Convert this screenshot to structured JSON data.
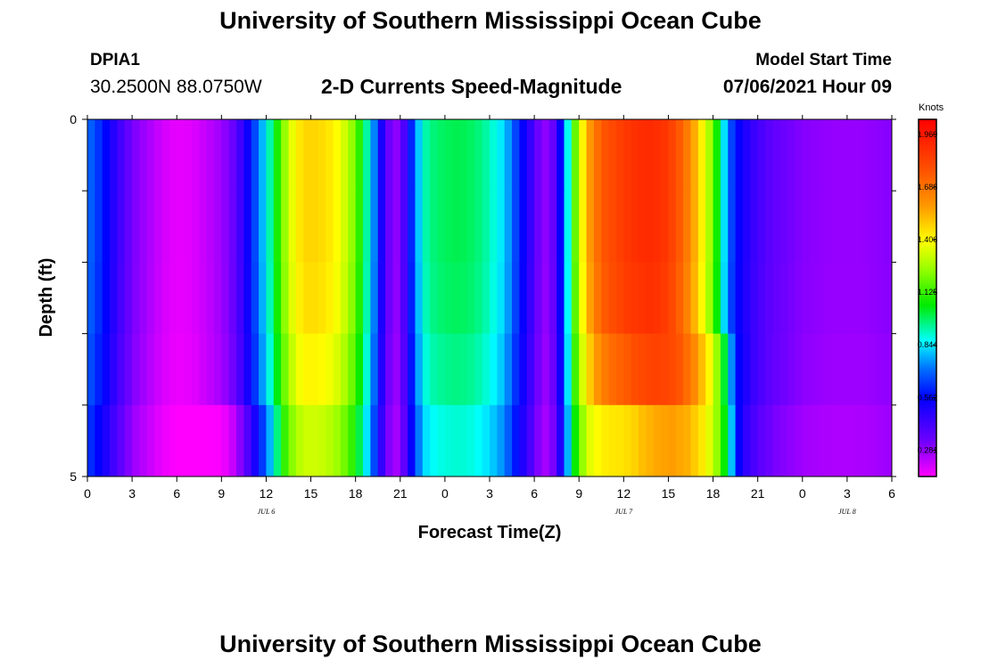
{
  "header": {
    "title": "University of Southern Mississippi Ocean Cube",
    "station_id": "DPIA1",
    "coordinates": "30.2500N  88.0750W",
    "plot_title": "2-D Currents Speed-Magnitude",
    "model_start_label": "Model Start Time",
    "model_start_value": "07/06/2021 Hour 09"
  },
  "footer": {
    "title": "University of Southern Mississippi Ocean Cube"
  },
  "colors": {
    "background": "#ffffff",
    "axis": "#000000"
  },
  "chart_data": {
    "type": "heatmap",
    "title": "2-D Currents Speed-Magnitude",
    "xlabel": "Forecast Time(Z)",
    "ylabel": "Depth (ft)",
    "x_unit": "hours since Jul 6 00Z",
    "xlim": [
      0,
      54
    ],
    "ylim": [
      0,
      5
    ],
    "y_ticks": [
      "0",
      "5"
    ],
    "x_tick_hours": [
      0,
      3,
      6,
      9,
      12,
      15,
      18,
      21,
      24,
      27,
      30,
      33,
      36,
      39,
      42,
      45,
      48,
      51,
      54
    ],
    "x_tick_labels": [
      "0",
      "3",
      "6",
      "9",
      "12",
      "15",
      "18",
      "21",
      "0",
      "3",
      "6",
      "9",
      "12",
      "15",
      "18",
      "21",
      "0",
      "3",
      "6"
    ],
    "date_labels": [
      {
        "hour": 12,
        "text": "JUL 6"
      },
      {
        "hour": 36,
        "text": "JUL 7"
      },
      {
        "hour": 51,
        "text": "JUL 8"
      }
    ],
    "colorbar": {
      "unit": "Knots",
      "min": 0.14,
      "max": 2.05,
      "ticks": [
        "0.281",
        "0.562",
        "0.844",
        "1.125",
        "1.406",
        "1.688",
        "1.969"
      ]
    },
    "depth_layers": [
      0,
      1,
      2,
      3,
      4,
      5
    ],
    "profile_x": [
      0,
      1,
      2,
      3,
      4,
      5,
      6,
      7,
      8,
      9,
      9.75,
      10.5,
      11,
      11.5,
      12,
      12.5,
      13,
      13.5,
      14,
      14.5,
      15,
      16,
      17,
      18,
      18.5,
      19,
      19.5,
      20,
      20.5,
      21,
      21.5,
      22,
      22.5,
      23,
      24,
      25,
      26,
      27,
      28,
      29,
      30,
      30.5,
      31,
      31.5,
      32,
      32.5,
      33,
      33.5,
      34,
      34.5,
      35,
      35.5,
      36,
      37,
      38,
      39,
      40,
      41,
      42,
      42.5,
      43,
      43.5,
      44,
      44.5,
      45,
      46,
      48,
      50,
      52,
      54
    ],
    "profile_top": [
      0.72,
      0.6,
      0.45,
      0.32,
      0.26,
      0.2,
      0.17,
      0.18,
      0.22,
      0.27,
      0.34,
      0.47,
      0.6,
      0.72,
      0.86,
      1.0,
      1.18,
      1.32,
      1.42,
      1.47,
      1.48,
      1.46,
      1.38,
      1.2,
      1.02,
      0.85,
      0.62,
      0.4,
      0.28,
      0.3,
      0.5,
      0.72,
      0.9,
      0.96,
      0.99,
      1.0,
      0.98,
      0.92,
      0.82,
      0.6,
      0.4,
      0.28,
      0.3,
      0.4,
      0.7,
      1.05,
      1.32,
      1.52,
      1.66,
      1.75,
      1.8,
      1.82,
      1.86,
      1.9,
      1.91,
      1.86,
      1.72,
      1.5,
      1.2,
      0.95,
      0.72,
      0.58,
      0.52,
      0.46,
      0.42,
      0.36,
      0.3,
      0.28,
      0.28,
      0.3
    ],
    "depth_scale": [
      1.0,
      1.0,
      0.99,
      0.96,
      0.9,
      0.84
    ],
    "bottom_scale_x": [
      0,
      6,
      7.5,
      9,
      10.5,
      13,
      33.5,
      36,
      54
    ],
    "bottom_scale_y": [
      1.0,
      0.92,
      0.75,
      0.6,
      0.8,
      1.0,
      1.0,
      0.9,
      1.0
    ],
    "bottom_shift_x": [
      0,
      33,
      34,
      35,
      36,
      42,
      44,
      54
    ],
    "bottom_shift_y": [
      0,
      0,
      0.3,
      0.8,
      1.2,
      1.3,
      0.4,
      0
    ]
  }
}
